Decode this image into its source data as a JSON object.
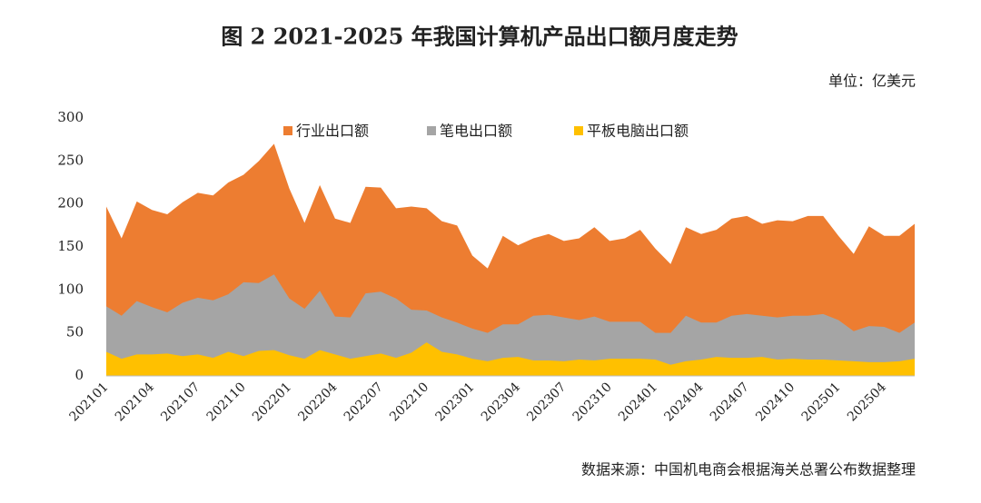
{
  "chart_data": {
    "type": "area",
    "title": "图 2   2021-2025 年我国计算机产品出口额月度走势",
    "unit": "单位：亿美元",
    "source": "数据来源：中国机电商会根据海关总署公布数据整理",
    "categories": [
      "202101",
      null,
      null,
      "202104",
      null,
      null,
      "202107",
      null,
      null,
      "202110",
      null,
      null,
      "202201",
      null,
      null,
      "202204",
      null,
      null,
      "202207",
      null,
      null,
      "202210",
      null,
      null,
      "202301",
      null,
      null,
      "202304",
      null,
      null,
      "202307",
      null,
      null,
      "202310",
      null,
      null,
      "202401",
      null,
      null,
      "202404",
      null,
      null,
      "202407",
      null,
      null,
      "202410",
      null,
      null,
      "202501",
      null,
      null,
      "202504",
      null,
      null
    ],
    "series": [
      {
        "name": "行业出口额",
        "color": "#ED7D31",
        "values": [
          197,
          160,
          203,
          193,
          188,
          202,
          213,
          210,
          225,
          234,
          250,
          270,
          218,
          178,
          222,
          183,
          178,
          220,
          219,
          195,
          197,
          195,
          180,
          175,
          140,
          125,
          163,
          152,
          160,
          165,
          157,
          160,
          173,
          157,
          160,
          170,
          148,
          130,
          173,
          165,
          170,
          183,
          186,
          177,
          181,
          180,
          186,
          186,
          163,
          142,
          174,
          163,
          163,
          177
        ]
      },
      {
        "name": "笔电出口额",
        "color": "#A5A5A5",
        "values": [
          81,
          70,
          87,
          80,
          74,
          85,
          91,
          88,
          95,
          109,
          108,
          118,
          90,
          78,
          99,
          69,
          68,
          96,
          98,
          90,
          77,
          76,
          68,
          62,
          55,
          50,
          60,
          60,
          70,
          71,
          68,
          65,
          69,
          63,
          63,
          63,
          50,
          50,
          70,
          62,
          62,
          70,
          72,
          70,
          68,
          70,
          70,
          72,
          65,
          52,
          58,
          57,
          50,
          62
        ]
      },
      {
        "name": "平板电脑出口额",
        "color": "#FFC000",
        "values": [
          28,
          20,
          25,
          25,
          26,
          23,
          25,
          21,
          28,
          23,
          29,
          30,
          24,
          20,
          30,
          25,
          20,
          23,
          26,
          21,
          27,
          39,
          28,
          25,
          20,
          17,
          21,
          22,
          18,
          18,
          17,
          19,
          18,
          20,
          20,
          20,
          19,
          13,
          17,
          19,
          22,
          21,
          21,
          22,
          19,
          20,
          19,
          19,
          18,
          17,
          16,
          16,
          17,
          20
        ]
      }
    ],
    "ylim": [
      0,
      300
    ],
    "yticks": [
      0,
      50,
      100,
      150,
      200,
      250,
      300
    ],
    "grid": false,
    "legend": "top"
  }
}
